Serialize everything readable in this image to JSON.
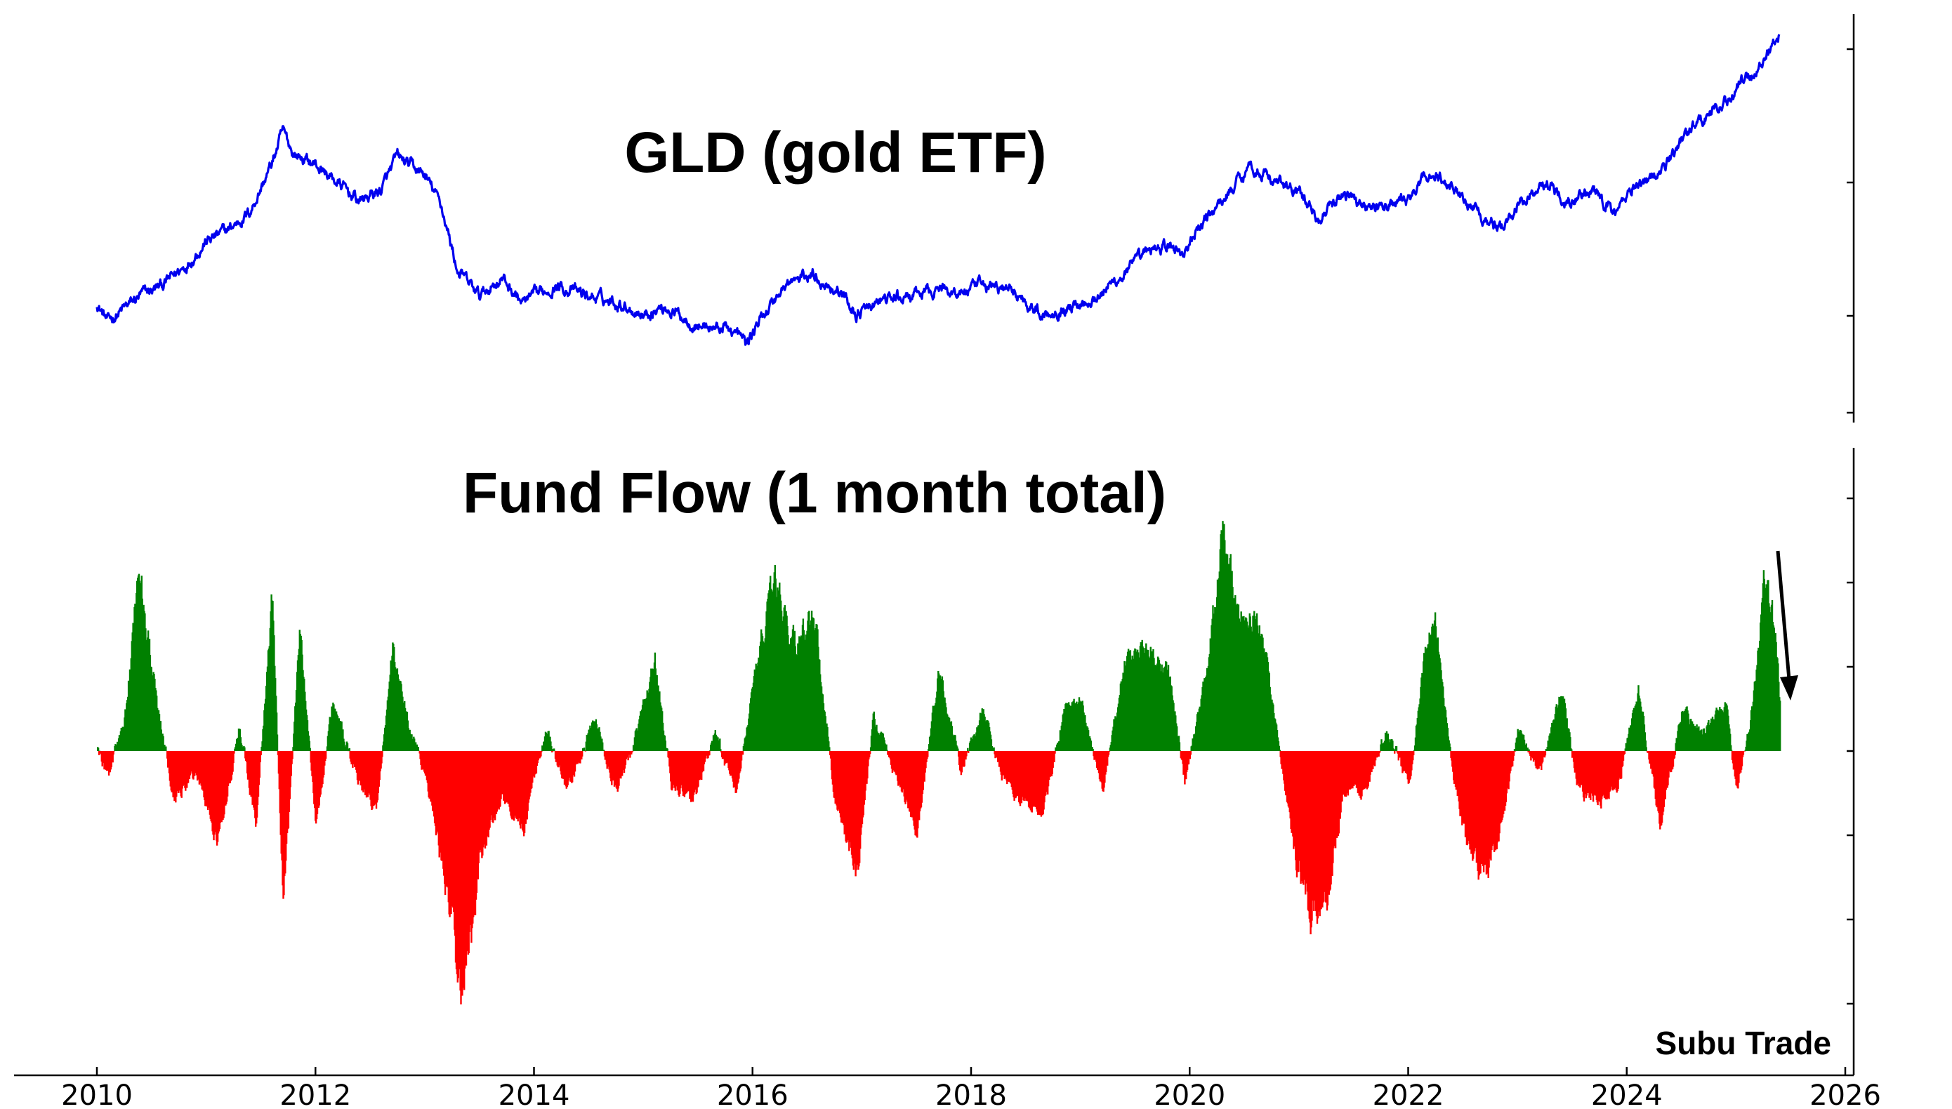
{
  "chart_data": [
    {
      "type": "line",
      "title": "GLD (gold ETF)",
      "series_color": "#0000ee",
      "x_range": [
        2010,
        2025.4
      ],
      "y_range": [
        0,
        1
      ],
      "anchors": [
        [
          2010.0,
          0.25
        ],
        [
          2010.1,
          0.2
        ],
        [
          2010.4,
          0.27
        ],
        [
          2010.6,
          0.3
        ],
        [
          2010.8,
          0.35
        ],
        [
          2011.0,
          0.42
        ],
        [
          2011.2,
          0.45
        ],
        [
          2011.4,
          0.5
        ],
        [
          2011.6,
          0.63
        ],
        [
          2011.7,
          0.72
        ],
        [
          2011.8,
          0.66
        ],
        [
          2012.0,
          0.63
        ],
        [
          2012.2,
          0.58
        ],
        [
          2012.4,
          0.53
        ],
        [
          2012.6,
          0.56
        ],
        [
          2012.75,
          0.65
        ],
        [
          2013.0,
          0.6
        ],
        [
          2013.15,
          0.52
        ],
        [
          2013.3,
          0.34
        ],
        [
          2013.5,
          0.27
        ],
        [
          2013.7,
          0.32
        ],
        [
          2013.9,
          0.25
        ],
        [
          2014.2,
          0.3
        ],
        [
          2014.5,
          0.27
        ],
        [
          2014.8,
          0.25
        ],
        [
          2015.0,
          0.22
        ],
        [
          2015.2,
          0.24
        ],
        [
          2015.5,
          0.19
        ],
        [
          2015.8,
          0.18
        ],
        [
          2015.95,
          0.14
        ],
        [
          2016.1,
          0.22
        ],
        [
          2016.3,
          0.3
        ],
        [
          2016.55,
          0.33
        ],
        [
          2016.8,
          0.28
        ],
        [
          2016.95,
          0.22
        ],
        [
          2017.2,
          0.26
        ],
        [
          2017.5,
          0.27
        ],
        [
          2017.7,
          0.29
        ],
        [
          2017.9,
          0.28
        ],
        [
          2018.15,
          0.3
        ],
        [
          2018.4,
          0.28
        ],
        [
          2018.65,
          0.22
        ],
        [
          2018.9,
          0.24
        ],
        [
          2019.15,
          0.27
        ],
        [
          2019.4,
          0.33
        ],
        [
          2019.7,
          0.41
        ],
        [
          2019.95,
          0.39
        ],
        [
          2020.15,
          0.48
        ],
        [
          2020.3,
          0.53
        ],
        [
          2020.55,
          0.63
        ],
        [
          2020.75,
          0.59
        ],
        [
          2021.0,
          0.55
        ],
        [
          2021.2,
          0.48
        ],
        [
          2021.4,
          0.55
        ],
        [
          2021.7,
          0.51
        ],
        [
          2022.0,
          0.53
        ],
        [
          2022.2,
          0.61
        ],
        [
          2022.45,
          0.56
        ],
        [
          2022.65,
          0.5
        ],
        [
          2022.85,
          0.45
        ],
        [
          2023.0,
          0.52
        ],
        [
          2023.25,
          0.58
        ],
        [
          2023.45,
          0.54
        ],
        [
          2023.7,
          0.55
        ],
        [
          2023.9,
          0.5
        ],
        [
          2024.05,
          0.57
        ],
        [
          2024.3,
          0.6
        ],
        [
          2024.55,
          0.72
        ],
        [
          2024.8,
          0.78
        ],
        [
          2024.95,
          0.81
        ],
        [
          2025.05,
          0.86
        ],
        [
          2025.2,
          0.89
        ],
        [
          2025.35,
          0.97
        ],
        [
          2025.4,
          0.99
        ]
      ]
    },
    {
      "type": "bar",
      "title": "Fund Flow (1 month total)",
      "positive_color": "#008000",
      "negative_color": "#ff0000",
      "x_range": [
        2010,
        2025.4
      ],
      "y_range": [
        -0.7,
        0.66
      ],
      "flows": [
        [
          2010.0,
          0.01
        ],
        [
          2010.1,
          -0.06
        ],
        [
          2010.25,
          0.08
        ],
        [
          2010.38,
          0.45
        ],
        [
          2010.55,
          0.1
        ],
        [
          2010.7,
          -0.12
        ],
        [
          2010.9,
          -0.05
        ],
        [
          2011.1,
          -0.22
        ],
        [
          2011.3,
          0.06
        ],
        [
          2011.45,
          -0.18
        ],
        [
          2011.6,
          0.38
        ],
        [
          2011.7,
          -0.4
        ],
        [
          2011.85,
          0.3
        ],
        [
          2012.0,
          -0.18
        ],
        [
          2012.15,
          0.12
        ],
        [
          2012.35,
          -0.05
        ],
        [
          2012.55,
          -0.15
        ],
        [
          2012.7,
          0.25
        ],
        [
          2012.85,
          0.06
        ],
        [
          2013.0,
          -0.05
        ],
        [
          2013.2,
          -0.35
        ],
        [
          2013.35,
          -0.62
        ],
        [
          2013.5,
          -0.25
        ],
        [
          2013.7,
          -0.12
        ],
        [
          2013.9,
          -0.18
        ],
        [
          2014.1,
          0.05
        ],
        [
          2014.3,
          -0.1
        ],
        [
          2014.55,
          0.08
        ],
        [
          2014.75,
          -0.1
        ],
        [
          2014.95,
          0.06
        ],
        [
          2015.1,
          0.22
        ],
        [
          2015.25,
          -0.08
        ],
        [
          2015.45,
          -0.12
        ],
        [
          2015.65,
          0.04
        ],
        [
          2015.85,
          -0.1
        ],
        [
          2016.05,
          0.25
        ],
        [
          2016.2,
          0.4
        ],
        [
          2016.4,
          0.25
        ],
        [
          2016.55,
          0.35
        ],
        [
          2016.75,
          -0.12
        ],
        [
          2016.95,
          -0.3
        ],
        [
          2017.1,
          0.08
        ],
        [
          2017.3,
          -0.05
        ],
        [
          2017.5,
          -0.2
        ],
        [
          2017.7,
          0.2
        ],
        [
          2017.9,
          -0.05
        ],
        [
          2018.1,
          0.1
        ],
        [
          2018.3,
          -0.08
        ],
        [
          2018.45,
          -0.12
        ],
        [
          2018.65,
          -0.15
        ],
        [
          2018.85,
          0.1
        ],
        [
          2019.0,
          0.12
        ],
        [
          2019.2,
          -0.1
        ],
        [
          2019.4,
          0.22
        ],
        [
          2019.6,
          0.25
        ],
        [
          2019.8,
          0.2
        ],
        [
          2019.95,
          -0.08
        ],
        [
          2020.15,
          0.2
        ],
        [
          2020.3,
          0.55
        ],
        [
          2020.45,
          0.3
        ],
        [
          2020.6,
          0.35
        ],
        [
          2020.8,
          0.05
        ],
        [
          2020.95,
          -0.25
        ],
        [
          2021.1,
          -0.4
        ],
        [
          2021.25,
          -0.35
        ],
        [
          2021.4,
          -0.1
        ],
        [
          2021.6,
          -0.1
        ],
        [
          2021.8,
          0.05
        ],
        [
          2022.0,
          -0.08
        ],
        [
          2022.15,
          0.25
        ],
        [
          2022.25,
          0.3
        ],
        [
          2022.4,
          -0.05
        ],
        [
          2022.55,
          -0.25
        ],
        [
          2022.7,
          -0.3
        ],
        [
          2022.85,
          -0.18
        ],
        [
          2023.0,
          0.05
        ],
        [
          2023.2,
          -0.05
        ],
        [
          2023.4,
          0.15
        ],
        [
          2023.55,
          -0.1
        ],
        [
          2023.75,
          -0.12
        ],
        [
          2023.9,
          -0.1
        ],
        [
          2024.1,
          0.15
        ],
        [
          2024.3,
          -0.18
        ],
        [
          2024.5,
          0.1
        ],
        [
          2024.7,
          0.05
        ],
        [
          2024.9,
          0.12
        ],
        [
          2025.0,
          -0.1
        ],
        [
          2025.15,
          0.12
        ],
        [
          2025.25,
          0.4
        ],
        [
          2025.35,
          0.3
        ],
        [
          2025.4,
          0.1
        ]
      ],
      "annotation": {
        "type": "arrow",
        "direction": "down",
        "at_x": 2025.5
      }
    }
  ],
  "x_axis": {
    "ticks": [
      "2010",
      "2012",
      "2014",
      "2016",
      "2018",
      "2020",
      "2022",
      "2024",
      "2026"
    ],
    "range": [
      2010,
      2026
    ]
  },
  "credit": "Subu Trade"
}
